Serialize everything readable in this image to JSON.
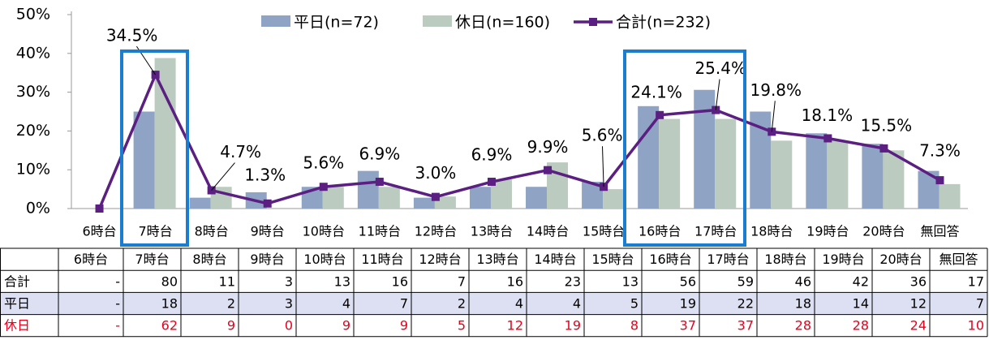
{
  "chart_data": {
    "type": "bar",
    "categories": [
      "6時台",
      "7時台",
      "8時台",
      "9時台",
      "10時台",
      "11時台",
      "12時台",
      "13時台",
      "14時台",
      "15時台",
      "16時台",
      "17時台",
      "18時台",
      "19時台",
      "20時台",
      "無回答"
    ],
    "ylim": [
      0,
      50
    ],
    "yticks": [
      {
        "value": 0,
        "label": "0%"
      },
      {
        "value": 10,
        "label": "10%"
      },
      {
        "value": 20,
        "label": "20%"
      },
      {
        "value": 30,
        "label": "30%"
      },
      {
        "value": 40,
        "label": "40%"
      },
      {
        "value": 50,
        "label": "50%"
      }
    ],
    "grid": false,
    "series": [
      {
        "name": "平日(n=72)",
        "type": "bar",
        "color": "#8fa3c4",
        "values": [
          0,
          25,
          2.8,
          4.2,
          5.6,
          9.7,
          2.8,
          5.6,
          5.6,
          6.9,
          26.4,
          30.6,
          25,
          19.4,
          16.7,
          9.7
        ]
      },
      {
        "name": "休日(n=160)",
        "type": "bar",
        "color": "#bccbbf",
        "values": [
          0,
          38.8,
          5.6,
          0,
          5.6,
          5.6,
          3.1,
          7.5,
          11.9,
          5.0,
          23.1,
          23.1,
          17.5,
          17.5,
          15.0,
          6.3
        ]
      },
      {
        "name": "合計(n=232)",
        "type": "line",
        "color": "#5b1f82",
        "values": [
          0,
          34.5,
          4.7,
          1.3,
          5.6,
          6.9,
          3.0,
          6.9,
          9.9,
          5.6,
          24.1,
          25.4,
          19.8,
          18.1,
          15.5,
          7.3
        ],
        "value_labels": [
          null,
          "34.5%",
          "4.7%",
          "1.3%",
          "5.6%",
          "6.9%",
          "3.0%",
          "6.9%",
          "9.9%",
          "5.6%",
          "24.1%",
          "25.4%",
          "19.8%",
          "18.1%",
          "15.5%",
          "7.3%"
        ]
      }
    ]
  },
  "table": {
    "header": [
      "6時台",
      "7時台",
      "8時台",
      "9時台",
      "10時台",
      "11時台",
      "12時台",
      "13時台",
      "14時台",
      "15時台",
      "16時台",
      "17時台",
      "18時台",
      "19時台",
      "20時台",
      "無回答"
    ],
    "rows": [
      {
        "label": "合計",
        "cells": [
          "-",
          80,
          11,
          3,
          13,
          16,
          7,
          16,
          23,
          13,
          56,
          59,
          46,
          42,
          36,
          17
        ]
      },
      {
        "label": "平日",
        "cells": [
          "-",
          18,
          2,
          3,
          4,
          7,
          2,
          4,
          4,
          5,
          19,
          22,
          18,
          14,
          12,
          7
        ]
      },
      {
        "label": "休日",
        "cells": [
          "-",
          62,
          9,
          0,
          9,
          9,
          5,
          12,
          19,
          8,
          37,
          37,
          28,
          28,
          24,
          10
        ]
      }
    ]
  }
}
